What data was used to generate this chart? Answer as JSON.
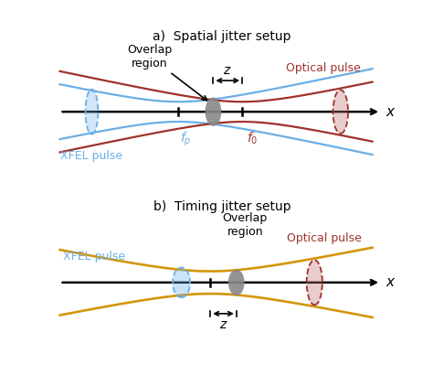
{
  "title_a": "a)  Spatial jitter setup",
  "title_b": "b)  Timing jitter setup",
  "blue_color": "#6aafe6",
  "red_color": "#a0322d",
  "red_fill_color": "#c07070",
  "orange_color": "#d4960a",
  "gray_color": "#606060",
  "gray_fill": "#888888",
  "xfel_label": "XFEL pulse",
  "optical_label": "Optical pulse",
  "overlap_label": "Overlap\nregion",
  "z_label": "z",
  "fp_label": "$f_p$",
  "f0_label": "$f_0$",
  "x_label": "x",
  "bg_color": "#ffffff"
}
